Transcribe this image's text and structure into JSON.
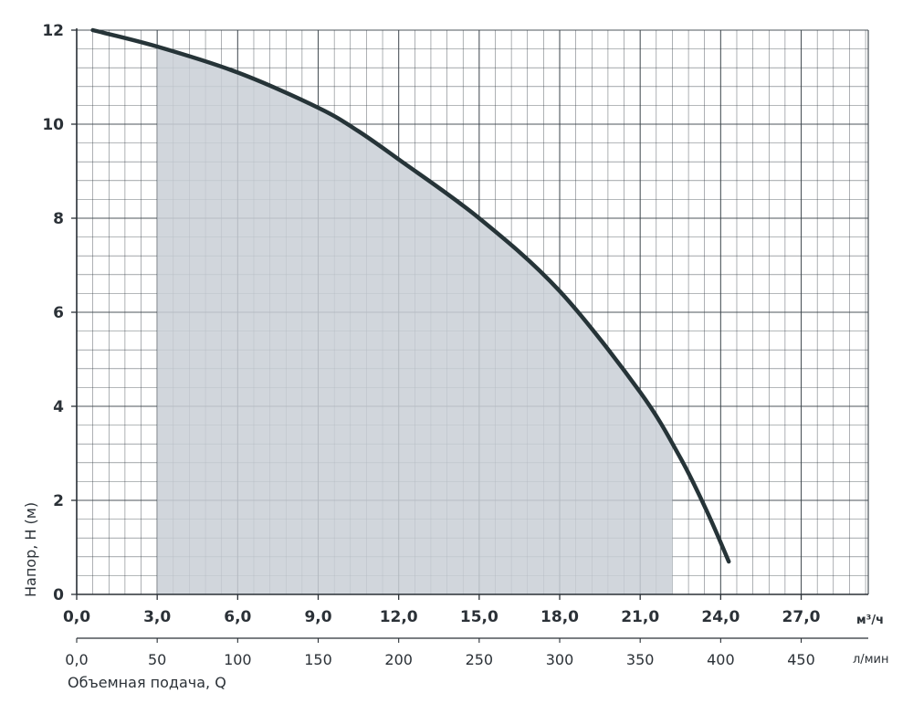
{
  "chart_data": {
    "type": "area",
    "xlabel": "Объемная подача, Q",
    "ylabel": "Напор, H (м)",
    "x_unit_primary": "м³/ч",
    "x_unit_secondary": "л/мин",
    "xlim": [
      0,
      29.5
    ],
    "ylim": [
      0,
      12
    ],
    "grid": true,
    "x_ticks_m3h": [
      "0,0",
      "3,0",
      "6,0",
      "9,0",
      "12,0",
      "15,0",
      "18,0",
      "21,0",
      "24,0",
      "27,0"
    ],
    "x_ticks_lmin": [
      "0,0",
      "50",
      "100",
      "150",
      "200",
      "250",
      "300",
      "350",
      "400",
      "450"
    ],
    "y_ticks": [
      "0",
      "2",
      "4",
      "6",
      "8",
      "10",
      "12"
    ],
    "series": [
      {
        "x": [
          0.6,
          3.0,
          6.0,
          9.0,
          10.5,
          12.0,
          15.0,
          18.0,
          21.0,
          22.5,
          23.5,
          24.3
        ],
        "y": [
          12.0,
          11.65,
          11.1,
          10.35,
          9.85,
          9.25,
          8.0,
          6.45,
          4.3,
          2.9,
          1.75,
          0.7
        ]
      }
    ],
    "operating_range": {
      "x_start": 3.0,
      "x_end": 22.2
    },
    "colors": {
      "curve": "#263438",
      "shade": "#c9cfd6",
      "grid": "#3a4249",
      "text": "#2b3137"
    }
  }
}
